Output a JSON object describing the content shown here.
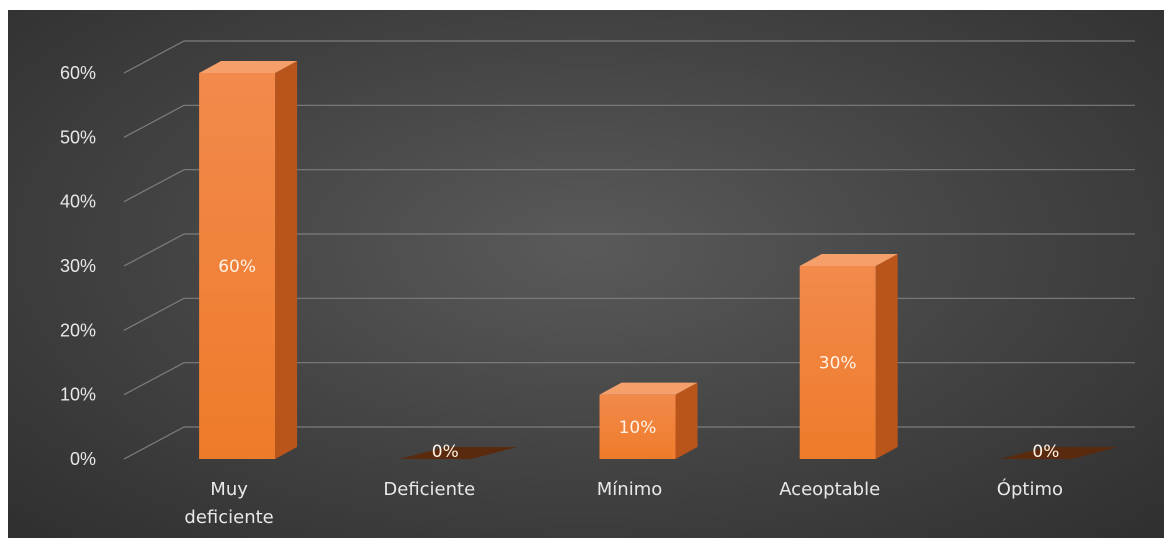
{
  "chart_data": {
    "type": "bar",
    "categories": [
      "Muy deficiente",
      "Deficiente",
      "Mínimo",
      "Aceoptable",
      "Óptimo"
    ],
    "category_lines": [
      [
        "Muy",
        "deficiente"
      ],
      [
        "Deficiente"
      ],
      [
        "Mínimo"
      ],
      [
        "Aceoptable"
      ],
      [
        "Óptimo"
      ]
    ],
    "values": [
      60,
      0,
      10,
      30,
      0
    ],
    "data_labels": [
      "60%",
      "0%",
      "10%",
      "30%",
      "0%"
    ],
    "yticks": [
      "0%",
      "10%",
      "20%",
      "30%",
      "40%",
      "50%",
      "60%"
    ],
    "ylim": [
      0,
      60
    ],
    "grid": true,
    "style": "3d-column",
    "colors": {
      "bar_front_top": "#f28a4c",
      "bar_front_bottom": "#ee7b2a",
      "bar_side": "#b9551a",
      "bar_top": "#f5a06a",
      "zero_bar": "#5a2a0e",
      "gridline": "#7d7d7d",
      "text": "#e8e8e8"
    }
  }
}
